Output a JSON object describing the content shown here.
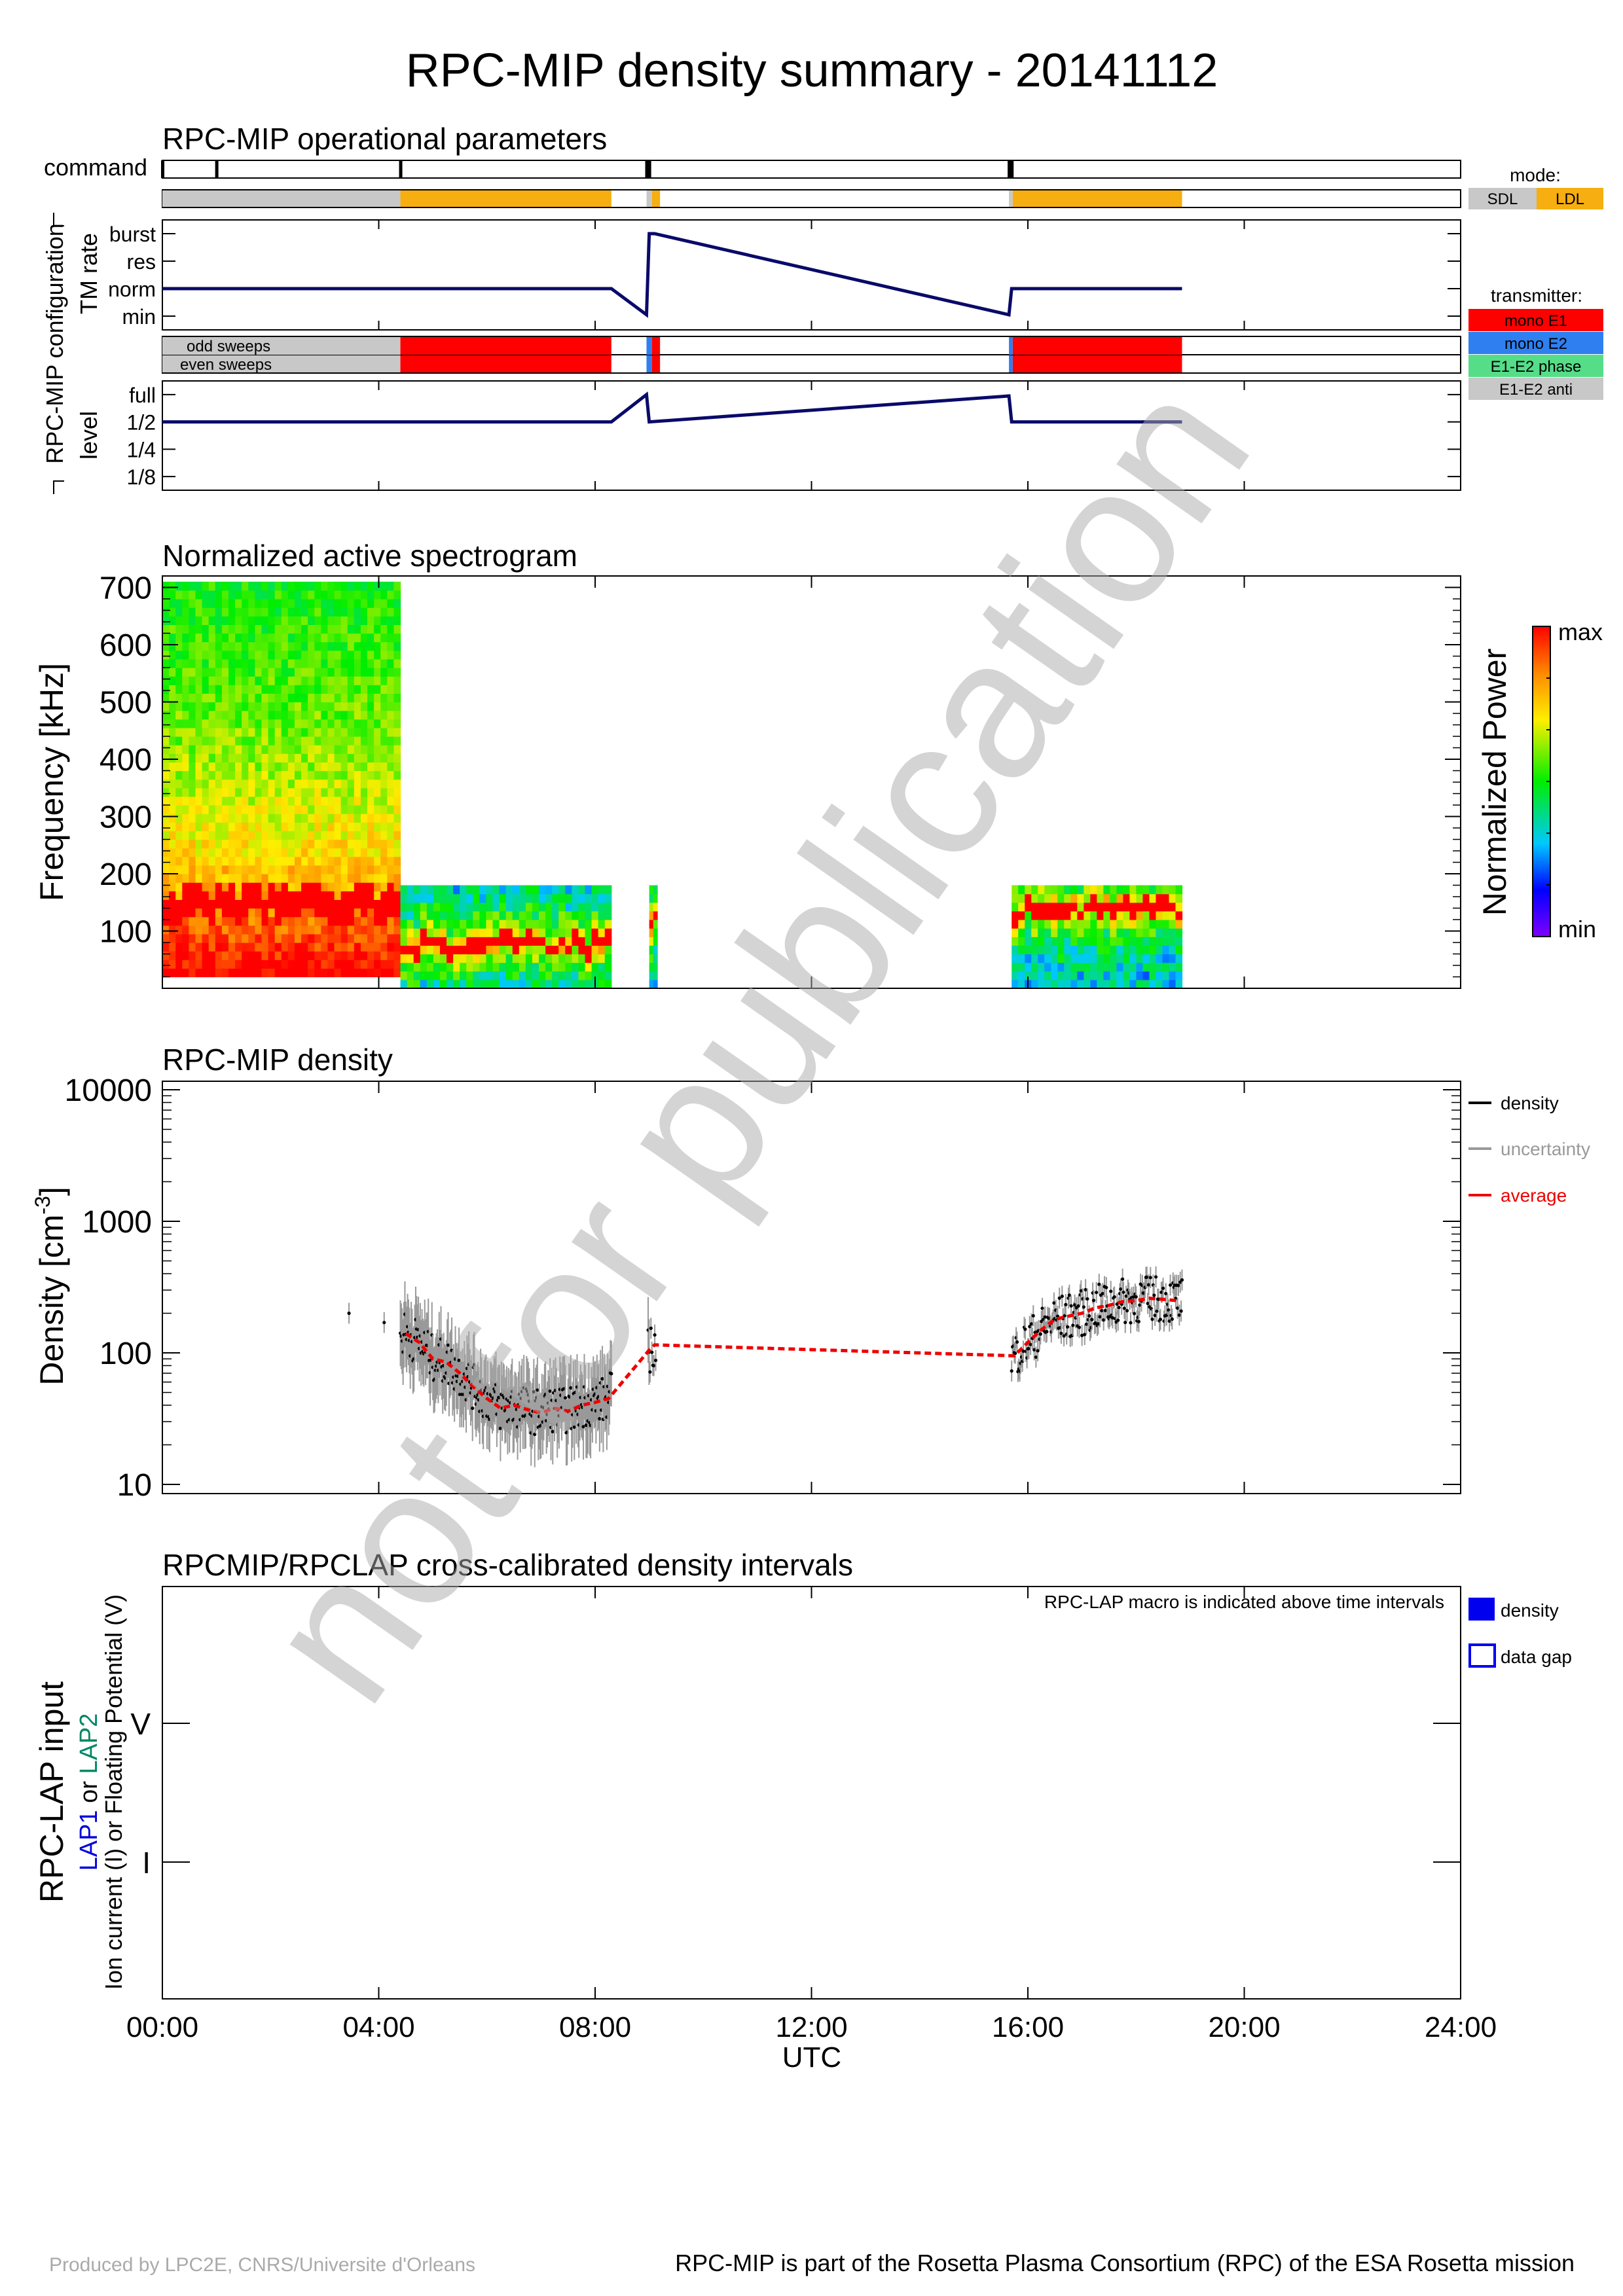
{
  "title": "RPC-MIP density summary - 20141112",
  "footer": {
    "left": "Produced by LPC2E, CNRS/Universite d'Orleans",
    "right": "RPC-MIP is part of the Rosetta Plasma Consortium (RPC) of the ESA Rosetta mission"
  },
  "watermark": "not for publication",
  "colors": {
    "sdl": "#c8c8c8",
    "ldl": "#f6ae10",
    "mono_e1": "#ff0000",
    "mono_e2": "#2f7ff0",
    "e1e2_phase": "#55dd88",
    "e1e2_anti": "#c8c8c8",
    "line": "#0a0a6a",
    "average": "#ee0000",
    "uncertainty": "#999999",
    "lap1": "#0000dd",
    "lap2": "#008866",
    "density_box": "#0000ee"
  },
  "x_axis": {
    "label": "UTC",
    "ticks": [
      "00:00",
      "04:00",
      "08:00",
      "12:00",
      "16:00",
      "20:00",
      "24:00"
    ],
    "range_hours": [
      0,
      24
    ]
  },
  "ops": {
    "title": "RPC-MIP operational parameters",
    "command_label": "command",
    "group_label": "RPC-MIP configuration",
    "tm_rate_label": "TM rate",
    "level_label": "level",
    "tm_ticks": [
      "burst",
      "res",
      "norm",
      "min"
    ],
    "level_ticks": [
      "full",
      "1/2",
      "1/4",
      "1/8"
    ],
    "odd_label": "odd sweeps",
    "even_label": "even sweeps",
    "mode_legend_title": "mode:",
    "mode_legend": [
      "SDL",
      "LDL"
    ],
    "transmitter_title": "transmitter:",
    "transmitter_legend": [
      "mono E1",
      "mono E2",
      "E1-E2 phase",
      "E1-E2 anti"
    ],
    "commands_h": [
      0.0,
      1.0,
      4.4,
      8.95,
      9.0,
      15.65,
      15.7
    ],
    "mode_segments": [
      {
        "start": 0.0,
        "end": 4.4,
        "mode": "SDL"
      },
      {
        "start": 4.4,
        "end": 8.3,
        "mode": "LDL"
      },
      {
        "start": 8.95,
        "end": 9.05,
        "mode": "SDL"
      },
      {
        "start": 9.05,
        "end": 9.2,
        "mode": "LDL"
      },
      {
        "start": 15.65,
        "end": 15.72,
        "mode": "SDL"
      },
      {
        "start": 15.72,
        "end": 18.85,
        "mode": "LDL"
      }
    ],
    "transmitter_segments": [
      {
        "start": 0.0,
        "end": 4.4,
        "tx": "E1-E2 anti"
      },
      {
        "start": 4.4,
        "end": 8.3,
        "tx": "mono E1"
      },
      {
        "start": 8.95,
        "end": 9.05,
        "tx": "mono E2"
      },
      {
        "start": 9.05,
        "end": 9.2,
        "tx": "mono E1"
      },
      {
        "start": 15.65,
        "end": 15.72,
        "tx": "mono E2"
      },
      {
        "start": 15.72,
        "end": 18.85,
        "tx": "mono E1"
      }
    ],
    "tm_rate_line": [
      [
        0,
        2
      ],
      [
        8.3,
        2
      ],
      [
        8.95,
        1.05
      ],
      [
        9.0,
        4.0
      ],
      [
        9.1,
        4.0
      ],
      [
        15.65,
        1.05
      ],
      [
        15.7,
        2
      ],
      [
        18.85,
        2
      ]
    ],
    "level_line": [
      [
        0,
        3
      ],
      [
        8.3,
        3
      ],
      [
        8.95,
        4.0
      ],
      [
        9.0,
        3
      ],
      [
        15.65,
        3.95
      ],
      [
        15.7,
        3
      ],
      [
        18.85,
        3
      ]
    ]
  },
  "spectrogram": {
    "title": "Normalized active spectrogram",
    "ylabel": "Frequency [kHz]",
    "yticks": [
      100,
      200,
      300,
      400,
      500,
      600,
      700
    ],
    "ylim": [
      0,
      700
    ],
    "colorbar_label": "Normalized Power",
    "colorbar_max": "max",
    "colorbar_min": "min",
    "blocks": [
      {
        "start": 0.0,
        "end": 4.4,
        "fmax": 700,
        "fmin": 20,
        "peak_khz": 140
      },
      {
        "start": 4.4,
        "end": 8.3,
        "fmax": 170,
        "fmin": 0,
        "peak_khz": 70
      },
      {
        "start": 9.0,
        "end": 9.15,
        "fmax": 170,
        "fmin": 0,
        "peak_khz": 110
      },
      {
        "start": 15.7,
        "end": 18.85,
        "fmax": 170,
        "fmin": 0,
        "peak_khz": 130
      }
    ]
  },
  "density": {
    "title": "RPC-MIP density",
    "ylabel": "Density [cm",
    "ylabel_sup": "-3",
    "ylabel_end": "]",
    "yticks": [
      "10",
      "100",
      "1000",
      "10000"
    ],
    "ylim": [
      10,
      10000
    ],
    "legend": [
      "density",
      "uncertainty",
      "average"
    ],
    "average_points": [
      [
        4.5,
        140
      ],
      [
        4.75,
        120
      ],
      [
        5.0,
        90
      ],
      [
        5.25,
        85
      ],
      [
        5.5,
        70
      ],
      [
        5.75,
        55
      ],
      [
        6.0,
        45
      ],
      [
        6.25,
        38
      ],
      [
        6.5,
        40
      ],
      [
        6.75,
        37
      ],
      [
        7.0,
        35
      ],
      [
        7.25,
        38
      ],
      [
        7.5,
        36
      ],
      [
        7.75,
        40
      ],
      [
        8.0,
        42
      ],
      [
        8.25,
        45
      ],
      [
        9.0,
        105
      ],
      [
        9.1,
        115
      ],
      [
        15.75,
        95
      ],
      [
        16.0,
        120
      ],
      [
        16.25,
        150
      ],
      [
        16.5,
        180
      ],
      [
        16.75,
        190
      ],
      [
        17.0,
        200
      ],
      [
        17.25,
        220
      ],
      [
        17.5,
        230
      ],
      [
        17.75,
        245
      ],
      [
        18.0,
        250
      ],
      [
        18.25,
        260
      ],
      [
        18.5,
        255
      ],
      [
        18.75,
        250
      ]
    ],
    "isolated_points": [
      [
        3.45,
        200
      ],
      [
        4.1,
        170
      ]
    ]
  },
  "lap": {
    "title": "RPCMIP/RPCLAP cross-calibrated density intervals",
    "ylabel_main": "RPC-LAP input",
    "ylabel_lap1": "LAP1",
    "ylabel_or": " or ",
    "ylabel_lap2": "LAP2",
    "ylabel_desc": "Ion current (I) or Floating Potential (V)",
    "yticks": [
      "I",
      "V"
    ],
    "note": "RPC-LAP macro is indicated above time intervals",
    "legend": [
      "density",
      "data gap"
    ]
  }
}
